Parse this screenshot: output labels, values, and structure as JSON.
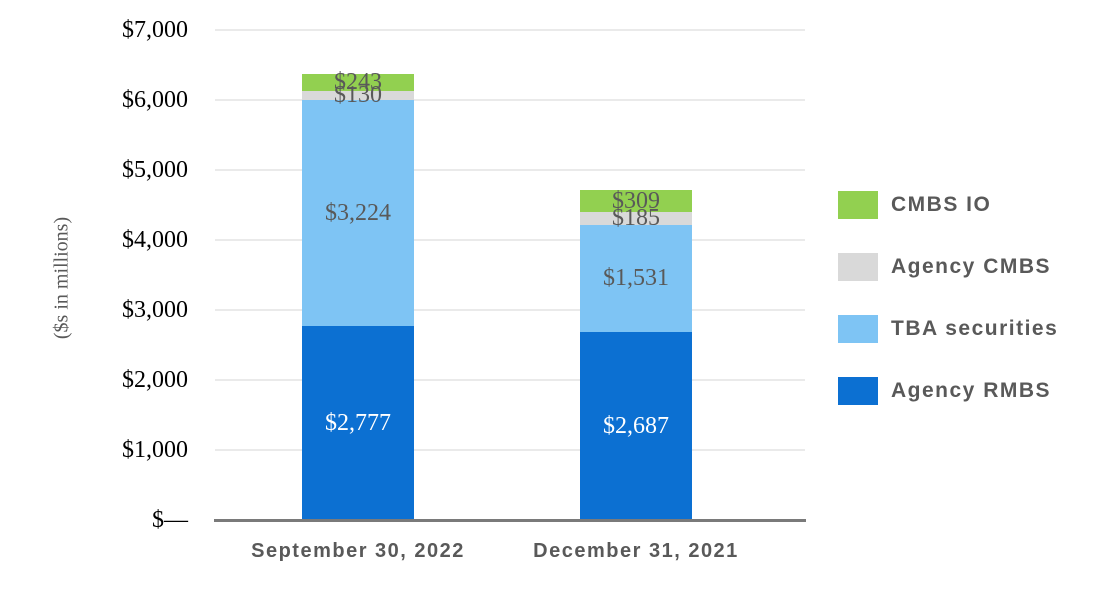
{
  "chart_data": {
    "type": "bar",
    "stacked": true,
    "title": "",
    "ylabel": "($s in millions)",
    "ylim": [
      0,
      7000
    ],
    "grid": true,
    "legend_position": "right",
    "categories": [
      "September 30, 2022",
      "December 31, 2021"
    ],
    "y_ticks": [
      {
        "value": 0,
        "label": "$—"
      },
      {
        "value": 1000,
        "label": "$1,000"
      },
      {
        "value": 2000,
        "label": "$2,000"
      },
      {
        "value": 3000,
        "label": "$3,000"
      },
      {
        "value": 4000,
        "label": "$4,000"
      },
      {
        "value": 5000,
        "label": "$5,000"
      },
      {
        "value": 6000,
        "label": "$6,000"
      },
      {
        "value": 7000,
        "label": "$7,000"
      }
    ],
    "series": [
      {
        "name": "Agency RMBS",
        "color": "#0C70D2",
        "label_color": "#FFFFFF",
        "values": [
          2777,
          2687
        ],
        "labels": [
          "$2,777",
          "$2,687"
        ]
      },
      {
        "name": "TBA securities",
        "color": "#7EC4F4",
        "label_color": "#595959",
        "values": [
          3224,
          1531
        ],
        "labels": [
          "$3,224",
          "$1,531"
        ]
      },
      {
        "name": "Agency CMBS",
        "color": "#D9D9D9",
        "label_color": "#595959",
        "values": [
          130,
          185
        ],
        "labels": [
          "$130",
          "$185"
        ]
      },
      {
        "name": "CMBS IO",
        "color": "#92D050",
        "label_color": "#595959",
        "values": [
          243,
          309
        ],
        "labels": [
          "$243",
          "$309"
        ]
      }
    ],
    "legend_order": [
      "CMBS IO",
      "Agency CMBS",
      "TBA securities",
      "Agency RMBS"
    ]
  }
}
